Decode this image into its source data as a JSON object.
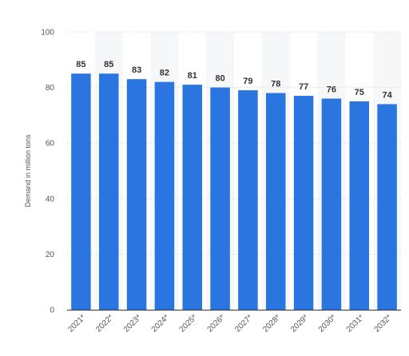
{
  "chart_data": {
    "type": "bar",
    "categories": [
      "2021*",
      "2022*",
      "2023*",
      "2024*",
      "2025*",
      "2026*",
      "2027*",
      "2028*",
      "2029*",
      "2030*",
      "2031*",
      "2032*"
    ],
    "values": [
      85,
      85,
      83,
      82,
      81,
      80,
      79,
      78,
      77,
      76,
      75,
      74
    ],
    "data_labels": [
      "85",
      "85",
      "83",
      "82",
      "81",
      "80",
      "79",
      "78",
      "77",
      "76",
      "75",
      "74"
    ],
    "xlabel": "",
    "ylabel": "Demand in million tons",
    "ylim": [
      0,
      100
    ],
    "yticks": [
      0,
      20,
      40,
      60,
      80,
      100
    ],
    "ytick_labels": [
      "0",
      "20",
      "40",
      "60",
      "80",
      "100"
    ],
    "grid": true,
    "legend": "none",
    "colors": {
      "bar": "#2a75df",
      "grid": "#cfd5dc",
      "band": "#f6f7f9"
    }
  }
}
